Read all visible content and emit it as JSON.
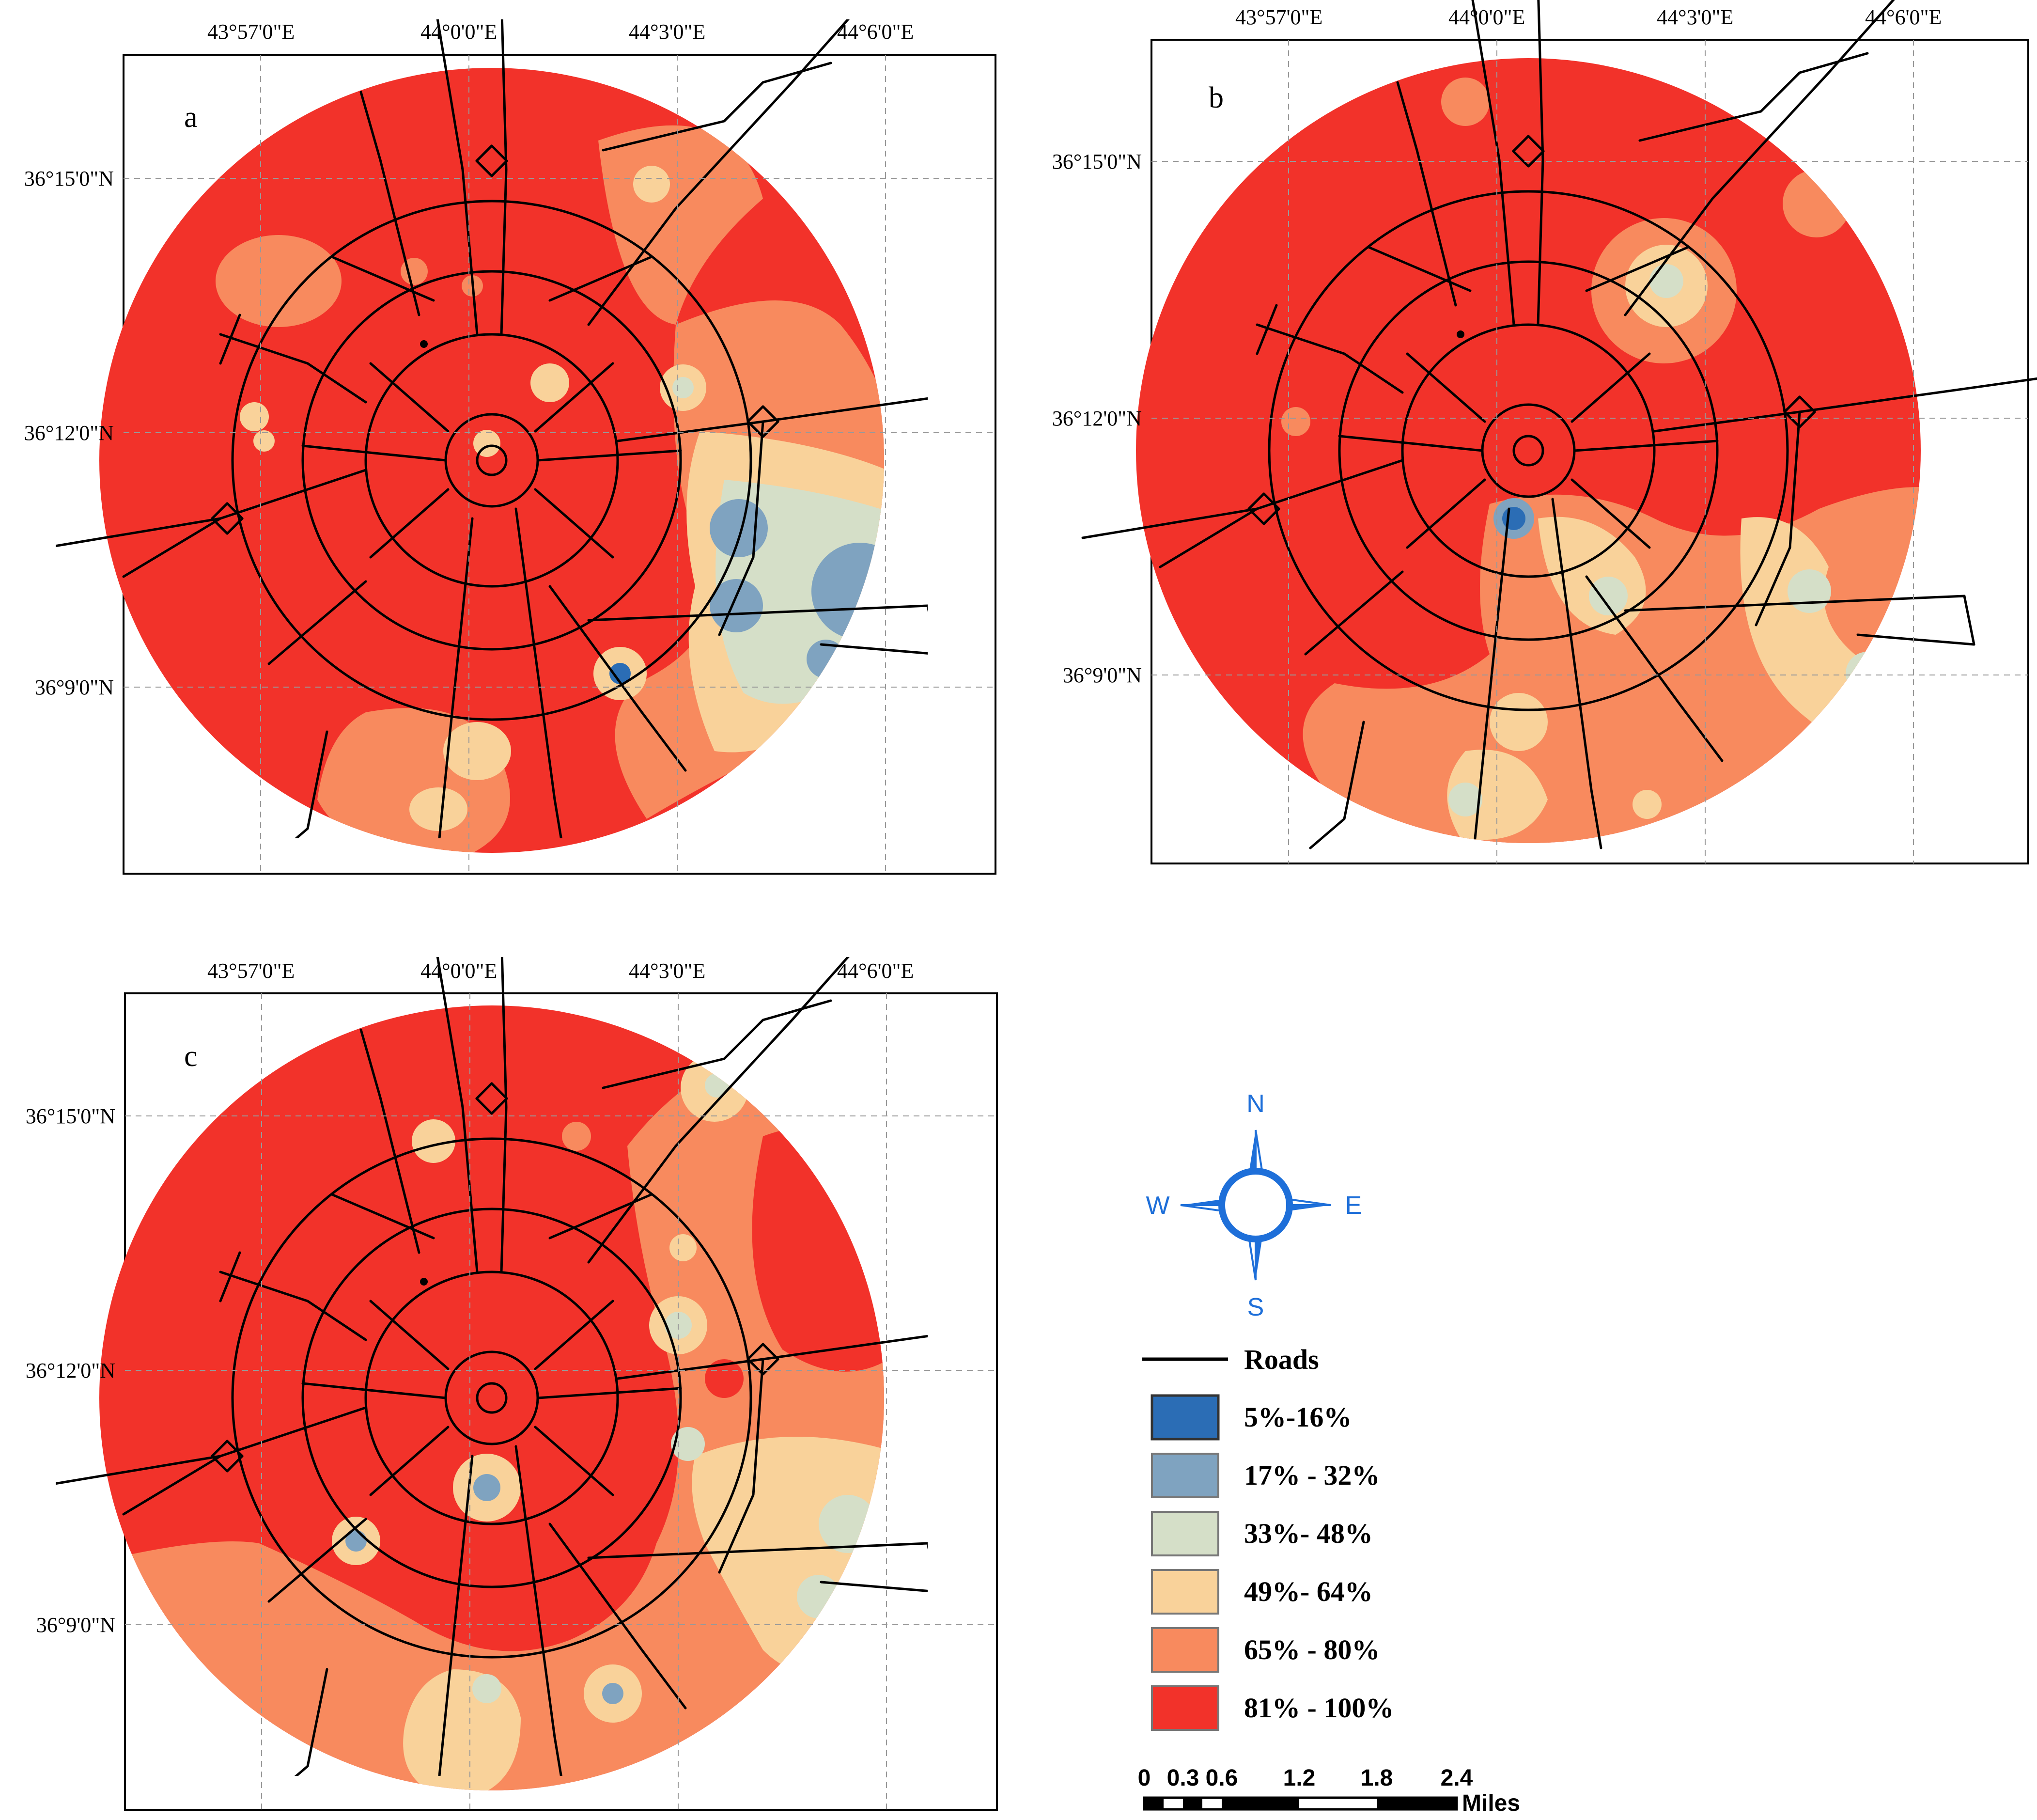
{
  "figure": {
    "panels": [
      {
        "id": "a",
        "label": "a"
      },
      {
        "id": "b",
        "label": "b"
      },
      {
        "id": "c",
        "label": "c"
      }
    ],
    "longitude_ticks": [
      "43°57'0\"E",
      "44°0'0\"E",
      "44°3'0\"E",
      "44°6'0\"E"
    ],
    "latitude_ticks": [
      "36°15'0\"N",
      "36°12'0\"N",
      "36°9'0\"N"
    ]
  },
  "legend": {
    "roads_label": "Roads",
    "classes": [
      {
        "label": "5%-16%",
        "color": "#2b6db5"
      },
      {
        "label": "17% - 32%",
        "color": "#7fa3c0"
      },
      {
        "label": "33%- 48%",
        "color": "#d5dfc8"
      },
      {
        "label": "49%- 64%",
        "color": "#f9d29a"
      },
      {
        "label": "65% - 80%",
        "color": "#f88a5e"
      },
      {
        "label": "81% - 100%",
        "color": "#f2322a"
      }
    ]
  },
  "compass": {
    "north": "N",
    "south": "S",
    "east": "E",
    "west": "W",
    "color": "#1e6fd9"
  },
  "scale_bar": {
    "ticks": [
      "0",
      "0.3",
      "0.6",
      "1.2",
      "1.8",
      "2.4"
    ],
    "unit": "Miles"
  }
}
